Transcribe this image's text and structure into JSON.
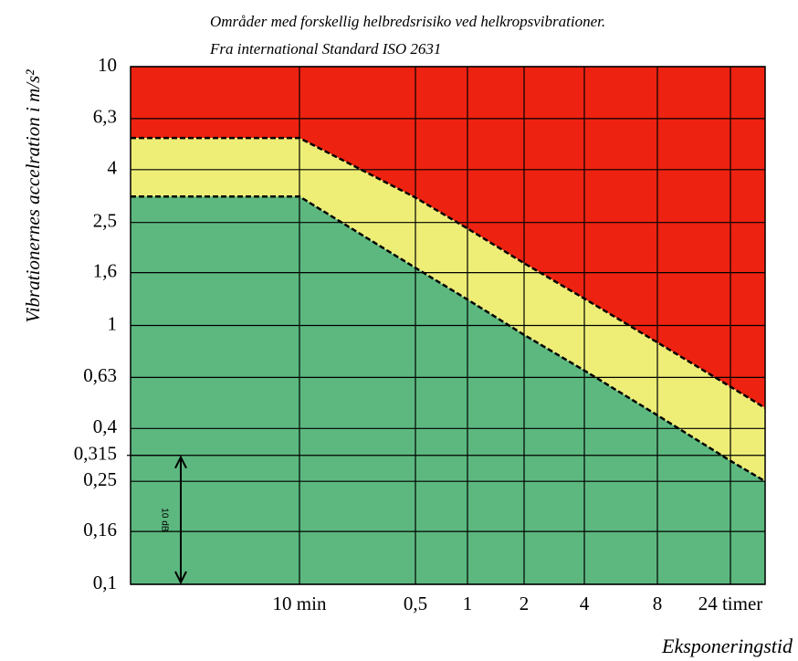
{
  "chart_data": {
    "type": "area",
    "title": "Områder med forskellig helbredsrisiko ved helkropsvibrationer.",
    "subtitle": "Fra international Standard ISO 2631",
    "y_label": "Vibrationernes accelration i m/s²",
    "x_label": "Eksponeringstid",
    "categories": [
      null,
      "10 min",
      "0,5",
      "1",
      "2",
      "4",
      "8",
      "24 timer",
      null
    ],
    "series": [
      {
        "color": "#5cb87f",
        "values": [
          3.15,
          3.15,
          1.67,
          1.26,
          0.92,
          0.67,
          0.45,
          0.3,
          0.25
        ]
      },
      {
        "color": "#eeee77",
        "values": [
          5.3,
          5.3,
          3.12,
          2.37,
          1.74,
          1.27,
          0.86,
          0.58,
          0.48
        ]
      }
    ],
    "top_color": "#ee2211",
    "log_y": true,
    "ylim": [
      0.1,
      10
    ],
    "yticks": [
      {
        "value": 0.1,
        "label": "0,1"
      },
      {
        "value": 0.16,
        "label": "0,16"
      },
      {
        "value": 0.25,
        "label": "0,25"
      },
      {
        "value": 0.315,
        "label": "0,315"
      },
      {
        "value": 0.4,
        "label": "0,4"
      },
      {
        "value": 0.63,
        "label": "0,63"
      },
      1,
      {
        "value": 1.6,
        "label": "1,6"
      },
      {
        "value": 2.5,
        "label": "2,5"
      },
      4,
      {
        "value": 6.3,
        "label": "6,3"
      },
      10
    ],
    "grid": true,
    "annotation": {
      "text": "10 dB",
      "from": 0.315,
      "to": 0.1
    }
  }
}
